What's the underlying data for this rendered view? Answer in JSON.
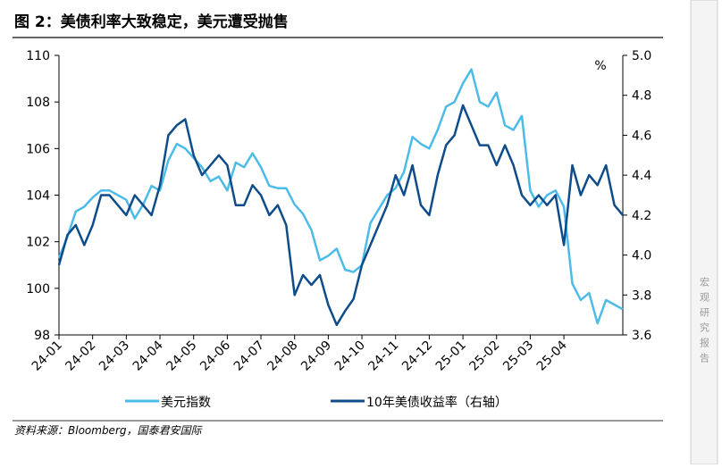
{
  "chart_data": {
    "type": "line",
    "title": "图 2：美债利率大致稳定，美元遭受抛售",
    "source": "资料来源：Bloomberg，国泰君安国际",
    "sidebar": "宏观研究报告",
    "y2label": "%",
    "categories": [
      "24-01",
      null,
      null,
      null,
      "24-02",
      null,
      null,
      null,
      "24-03",
      null,
      null,
      null,
      "24-04",
      null,
      null,
      null,
      "24-05",
      null,
      null,
      null,
      "24-06",
      null,
      null,
      null,
      "24-07",
      null,
      null,
      null,
      "24-08",
      null,
      null,
      null,
      "24-09",
      null,
      null,
      null,
      "24-10",
      null,
      null,
      null,
      "24-11",
      null,
      null,
      null,
      "24-12",
      null,
      null,
      null,
      "25-01",
      null,
      null,
      null,
      "25-02",
      null,
      null,
      null,
      "25-03",
      null,
      null,
      null,
      "25-04",
      null,
      null,
      null,
      null,
      null,
      null,
      null
    ],
    "series": [
      {
        "name": "美元指数",
        "color": "#4dbbe8",
        "values": [
          101.3,
          102.2,
          103.3,
          103.5,
          103.9,
          104.2,
          104.2,
          104.0,
          103.8,
          103.0,
          103.6,
          104.4,
          104.2,
          105.5,
          106.2,
          106.0,
          105.6,
          105.2,
          104.6,
          104.8,
          104.2,
          105.4,
          105.2,
          105.8,
          105.2,
          104.4,
          104.3,
          104.3,
          103.6,
          103.2,
          102.5,
          101.2,
          101.4,
          101.7,
          100.8,
          100.7,
          101.0,
          102.8,
          103.4,
          104.0,
          104.3,
          105.0,
          106.5,
          106.2,
          106.0,
          106.8,
          107.8,
          108.0,
          108.8,
          109.4,
          108.0,
          107.8,
          108.4,
          107.0,
          106.8,
          107.4,
          104.2,
          103.5,
          104.0,
          104.2,
          103.5,
          100.2,
          99.5,
          99.8,
          98.5,
          99.5,
          99.3,
          99.1
        ]
      },
      {
        "name": "10年美债收益率（右轴）",
        "color": "#0e4c8a",
        "axis": "y2",
        "values": [
          3.95,
          4.1,
          4.15,
          4.05,
          4.15,
          4.3,
          4.3,
          4.25,
          4.2,
          4.3,
          4.25,
          4.2,
          4.35,
          4.6,
          4.65,
          4.68,
          4.5,
          4.4,
          4.45,
          4.5,
          4.45,
          4.25,
          4.25,
          4.35,
          4.3,
          4.2,
          4.25,
          4.15,
          3.8,
          3.9,
          3.85,
          3.9,
          3.75,
          3.65,
          3.72,
          3.78,
          3.95,
          4.05,
          4.15,
          4.25,
          4.4,
          4.3,
          4.45,
          4.25,
          4.2,
          4.4,
          4.55,
          4.6,
          4.75,
          4.65,
          4.55,
          4.55,
          4.45,
          4.55,
          4.45,
          4.3,
          4.25,
          4.3,
          4.25,
          4.3,
          4.05,
          4.45,
          4.3,
          4.4,
          4.35,
          4.45,
          4.25,
          4.2
        ]
      }
    ],
    "ylim": [
      98,
      110
    ],
    "yticks": [
      98,
      100,
      102,
      104,
      106,
      108,
      110
    ],
    "y2lim": [
      3.6,
      5.0
    ],
    "y2ticks": [
      3.6,
      3.8,
      {
        "value": 4,
        "label": "4.0"
      },
      4.2,
      4.4,
      4.6,
      4.8,
      {
        "value": 5,
        "label": "5.0"
      }
    ]
  }
}
